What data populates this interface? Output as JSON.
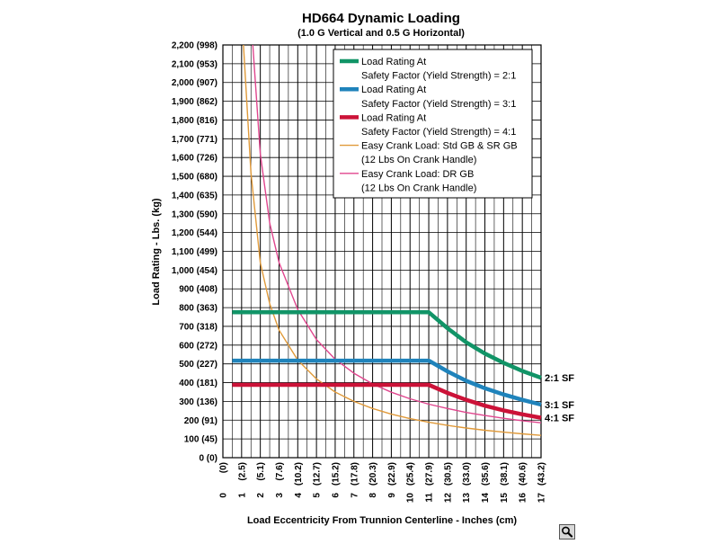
{
  "chart_data": {
    "type": "line",
    "title": "HD664 Dynamic Loading",
    "subtitle": "(1.0 G Vertical and 0.5 G Horizontal)",
    "xlabel": "Load Eccentricity From Trunnion Centerline - Inches (cm)",
    "ylabel": "Load Rating - Lbs. (kg)",
    "xlim": [
      0,
      17
    ],
    "ylim": [
      0,
      2200
    ],
    "grid": true,
    "legend_position": "top-right",
    "y_ticks": [
      {
        "value": 0,
        "label": "0 (0)"
      },
      {
        "value": 100,
        "label": "100 (45)"
      },
      {
        "value": 200,
        "label": "200 (91)"
      },
      {
        "value": 300,
        "label": "300 (136)"
      },
      {
        "value": 400,
        "label": "400 (181)"
      },
      {
        "value": 500,
        "label": "500 (227)"
      },
      {
        "value": 600,
        "label": "600 (272)"
      },
      {
        "value": 700,
        "label": "700 (318)"
      },
      {
        "value": 800,
        "label": "800 (363)"
      },
      {
        "value": 900,
        "label": "900 (408)"
      },
      {
        "value": 1000,
        "label": "1,000 (454)"
      },
      {
        "value": 1100,
        "label": "1,100 (499)"
      },
      {
        "value": 1200,
        "label": "1,200 (544)"
      },
      {
        "value": 1300,
        "label": "1,300 (590)"
      },
      {
        "value": 1400,
        "label": "1,400 (635)"
      },
      {
        "value": 1500,
        "label": "1,500 (680)"
      },
      {
        "value": 1600,
        "label": "1,600 (726)"
      },
      {
        "value": 1700,
        "label": "1,700 (771)"
      },
      {
        "value": 1800,
        "label": "1,800 (816)"
      },
      {
        "value": 1900,
        "label": "1,900 (862)"
      },
      {
        "value": 2000,
        "label": "2,000 (907)"
      },
      {
        "value": 2100,
        "label": "2,100 (953)"
      },
      {
        "value": 2200,
        "label": "2,200 (998)"
      }
    ],
    "x_ticks": [
      {
        "value": 0,
        "inch": "0",
        "cm": "(0)"
      },
      {
        "value": 1,
        "inch": "1",
        "cm": "(2.5)"
      },
      {
        "value": 2,
        "inch": "2",
        "cm": "(5.1)"
      },
      {
        "value": 3,
        "inch": "3",
        "cm": "(7.6)"
      },
      {
        "value": 4,
        "inch": "4",
        "cm": "(10.2)"
      },
      {
        "value": 5,
        "inch": "5",
        "cm": "(12.7)"
      },
      {
        "value": 6,
        "inch": "6",
        "cm": "(15.2)"
      },
      {
        "value": 7,
        "inch": "7",
        "cm": "(17.8)"
      },
      {
        "value": 8,
        "inch": "8",
        "cm": "(20.3)"
      },
      {
        "value": 9,
        "inch": "9",
        "cm": "(22.9)"
      },
      {
        "value": 10,
        "inch": "10",
        "cm": "(25.4)"
      },
      {
        "value": 11,
        "inch": "11",
        "cm": "(27.9)"
      },
      {
        "value": 12,
        "inch": "12",
        "cm": "(30.5)"
      },
      {
        "value": 13,
        "inch": "13",
        "cm": "(33.0)"
      },
      {
        "value": 14,
        "inch": "14",
        "cm": "(35.6)"
      },
      {
        "value": 15,
        "inch": "15",
        "cm": "(38.1)"
      },
      {
        "value": 16,
        "inch": "16",
        "cm": "(40.6)"
      },
      {
        "value": 17,
        "inch": "17",
        "cm": "(43.2)"
      }
    ],
    "series": [
      {
        "legend": [
          "Load Rating At",
          "Safety Factor (Yield Strength) = 2:1"
        ],
        "end_label": "2:1 SF",
        "color": "#119467",
        "style": "thick",
        "points": [
          [
            0.5,
            775
          ],
          [
            11,
            775
          ],
          [
            12,
            690
          ],
          [
            13,
            615
          ],
          [
            14,
            555
          ],
          [
            15,
            505
          ],
          [
            16,
            462
          ],
          [
            17,
            426
          ]
        ]
      },
      {
        "legend": [
          "Load Rating At",
          "Safety Factor (Yield Strength) = 3:1"
        ],
        "end_label": "3:1 SF",
        "color": "#1f83bb",
        "style": "thick",
        "points": [
          [
            0.5,
            517
          ],
          [
            11,
            517
          ],
          [
            12,
            460
          ],
          [
            13,
            410
          ],
          [
            14,
            370
          ],
          [
            15,
            337
          ],
          [
            16,
            308
          ],
          [
            17,
            283
          ]
        ]
      },
      {
        "legend": [
          "Load Rating At",
          "Safety Factor (Yield Strength) = 4:1"
        ],
        "end_label": "4:1 SF",
        "color": "#cc1238",
        "style": "thick",
        "points": [
          [
            0.5,
            388
          ],
          [
            11,
            388
          ],
          [
            12,
            345
          ],
          [
            13,
            308
          ],
          [
            14,
            277
          ],
          [
            15,
            252
          ],
          [
            16,
            231
          ],
          [
            17,
            213
          ]
        ]
      },
      {
        "legend": [
          "Easy Crank Load: Std GB & SR GB",
          "(12 Lbs On Crank Handle)"
        ],
        "end_label": "",
        "color": "#e09a3a",
        "style": "thin",
        "points": [
          [
            1.1,
            2200
          ],
          [
            1.5,
            1520
          ],
          [
            2,
            1040
          ],
          [
            2.5,
            820
          ],
          [
            3,
            680
          ],
          [
            4,
            520
          ],
          [
            5,
            420
          ],
          [
            6,
            350
          ],
          [
            7,
            300
          ],
          [
            8,
            262
          ],
          [
            9,
            232
          ],
          [
            10,
            208
          ],
          [
            11,
            189
          ],
          [
            12,
            172
          ],
          [
            13,
            158
          ],
          [
            14,
            146
          ],
          [
            15,
            136
          ],
          [
            16,
            127
          ],
          [
            17,
            119
          ]
        ]
      },
      {
        "legend": [
          "Easy Crank Load: DR GB",
          "(12 Lbs On Crank Handle)"
        ],
        "end_label": "",
        "color": "#e0468e",
        "style": "thin",
        "points": [
          [
            1.6,
            2200
          ],
          [
            2,
            1620
          ],
          [
            2.5,
            1250
          ],
          [
            3,
            1040
          ],
          [
            4,
            790
          ],
          [
            5,
            630
          ],
          [
            6,
            525
          ],
          [
            7,
            450
          ],
          [
            8,
            393
          ],
          [
            9,
            349
          ],
          [
            10,
            314
          ],
          [
            11,
            285
          ],
          [
            12,
            262
          ],
          [
            13,
            241
          ],
          [
            14,
            225
          ],
          [
            15,
            210
          ],
          [
            16,
            197
          ],
          [
            17,
            186
          ]
        ]
      }
    ]
  },
  "ui": {
    "zoom_icon": "magnifier-icon"
  }
}
